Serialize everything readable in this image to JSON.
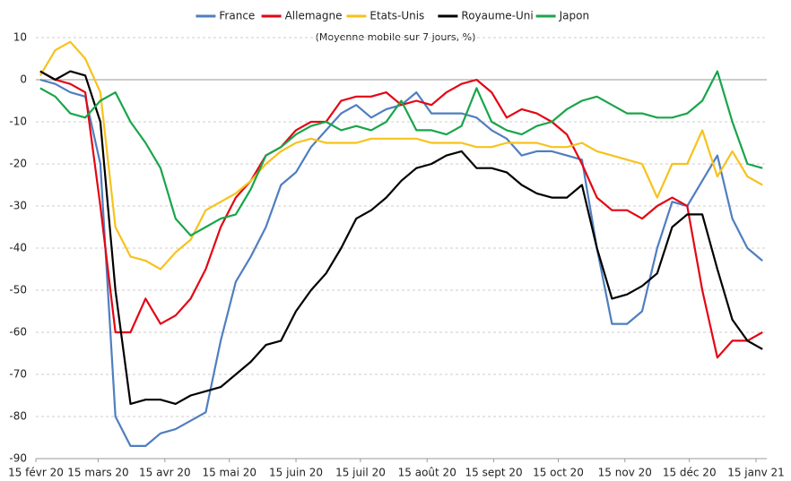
{
  "chart_data": {
    "type": "line",
    "subtitle": "(Moyenne mobile sur 7 jours, %)",
    "x": [
      "2020-02-17",
      "2020-02-24",
      "2020-03-02",
      "2020-03-09",
      "2020-03-16",
      "2020-03-23",
      "2020-03-30",
      "2020-04-06",
      "2020-04-13",
      "2020-04-20",
      "2020-04-27",
      "2020-05-04",
      "2020-05-11",
      "2020-05-18",
      "2020-05-25",
      "2020-06-01",
      "2020-06-08",
      "2020-06-15",
      "2020-06-22",
      "2020-06-29",
      "2020-07-06",
      "2020-07-13",
      "2020-07-20",
      "2020-07-27",
      "2020-08-03",
      "2020-08-10",
      "2020-08-17",
      "2020-08-24",
      "2020-08-31",
      "2020-09-07",
      "2020-09-14",
      "2020-09-21",
      "2020-09-28",
      "2020-10-05",
      "2020-10-12",
      "2020-10-19",
      "2020-10-26",
      "2020-11-02",
      "2020-11-09",
      "2020-11-16",
      "2020-11-23",
      "2020-11-30",
      "2020-12-07",
      "2020-12-14",
      "2020-12-21",
      "2020-12-28",
      "2021-01-04",
      "2021-01-11",
      "2021-01-18"
    ],
    "series": [
      {
        "name": "France",
        "color": "#4f7ec0",
        "values": [
          0,
          -1,
          -3,
          -4,
          -20,
          -80,
          -87,
          -87,
          -84,
          -83,
          -81,
          -79,
          -62,
          -48,
          -42,
          -35,
          -25,
          -22,
          -16,
          -12,
          -8,
          -6,
          -9,
          -7,
          -6,
          -3,
          -8,
          -8,
          -8,
          -9,
          -12,
          -14,
          -18,
          -17,
          -17,
          -18,
          -19,
          -40,
          -58,
          -58,
          -55,
          -40,
          -29,
          -30,
          -24,
          -18,
          -33,
          -40,
          -43
        ]
      },
      {
        "name": "Allemagne",
        "color": "#e30613",
        "values": [
          2,
          0,
          -1,
          -3,
          -30,
          -60,
          -60,
          -52,
          -58,
          -56,
          -52,
          -45,
          -35,
          -28,
          -24,
          -18,
          -16,
          -12,
          -10,
          -10,
          -5,
          -4,
          -4,
          -3,
          -6,
          -5,
          -6,
          -3,
          -1,
          0,
          -3,
          -9,
          -7,
          -8,
          -10,
          -13,
          -20,
          -28,
          -31,
          -31,
          -33,
          -30,
          -28,
          -30,
          -50,
          -66,
          -62,
          -62,
          -60
        ]
      },
      {
        "name": "Etats-Unis",
        "color": "#f7c21c",
        "values": [
          1,
          7,
          9,
          5,
          -3,
          -35,
          -42,
          -43,
          -45,
          -41,
          -38,
          -31,
          -29,
          -27,
          -24,
          -20,
          -17,
          -15,
          -14,
          -15,
          -15,
          -15,
          -14,
          -14,
          -14,
          -14,
          -15,
          -15,
          -15,
          -16,
          -16,
          -15,
          -15,
          -15,
          -16,
          -16,
          -15,
          -17,
          -18,
          -19,
          -20,
          -28,
          -20,
          -20,
          -12,
          -23,
          -17,
          -23,
          -25
        ]
      },
      {
        "name": "Royaume-Uni",
        "color": "#000000",
        "values": [
          2,
          0,
          2,
          1,
          -10,
          -50,
          -77,
          -76,
          -76,
          -77,
          -75,
          -74,
          -73,
          -70,
          -67,
          -63,
          -62,
          -55,
          -50,
          -46,
          -40,
          -33,
          -31,
          -28,
          -24,
          -21,
          -20,
          -18,
          -17,
          -21,
          -21,
          -22,
          -25,
          -27,
          -28,
          -28,
          -25,
          -40,
          -52,
          -51,
          -49,
          -46,
          -35,
          -32,
          -32,
          -45,
          -57,
          -62,
          -64
        ]
      },
      {
        "name": "Japon",
        "color": "#18a54a",
        "values": [
          -2,
          -4,
          -8,
          -9,
          -5,
          -3,
          -10,
          -15,
          -21,
          -33,
          -37,
          -35,
          -33,
          -32,
          -26,
          -18,
          -16,
          -13,
          -11,
          -10,
          -12,
          -11,
          -12,
          -10,
          -5,
          -12,
          -12,
          -13,
          -11,
          -2,
          -10,
          -12,
          -13,
          -11,
          -10,
          -7,
          -5,
          -4,
          -6,
          -8,
          -8,
          -9,
          -9,
          -8,
          -5,
          2,
          -10,
          -20,
          -21
        ]
      }
    ],
    "xlim": [
      "2020-02-15",
      "2021-01-20"
    ],
    "xticks": [
      {
        "value": "2020-02-15",
        "label": "15 févr 20"
      },
      {
        "value": "2020-03-15",
        "label": "15 mars 20"
      },
      {
        "value": "2020-04-15",
        "label": "15 avr 20"
      },
      {
        "value": "2020-05-15",
        "label": "15 mai 20"
      },
      {
        "value": "2020-06-15",
        "label": "15 juin 20"
      },
      {
        "value": "2020-07-15",
        "label": "15 juil 20"
      },
      {
        "value": "2020-08-15",
        "label": "15 août 20"
      },
      {
        "value": "2020-09-15",
        "label": "15 sept 20"
      },
      {
        "value": "2020-10-15",
        "label": "15 oct 20"
      },
      {
        "value": "2020-11-15",
        "label": "15 nov 20"
      },
      {
        "value": "2020-12-15",
        "label": "15 déc 20"
      },
      {
        "value": "2021-01-15",
        "label": "15 janv 21"
      }
    ],
    "ylim": [
      -90,
      10
    ],
    "yticks": [
      10,
      0,
      -10,
      -20,
      -30,
      -40,
      -50,
      -60,
      -70,
      -80,
      -90
    ],
    "grid": true,
    "legend": "top"
  }
}
